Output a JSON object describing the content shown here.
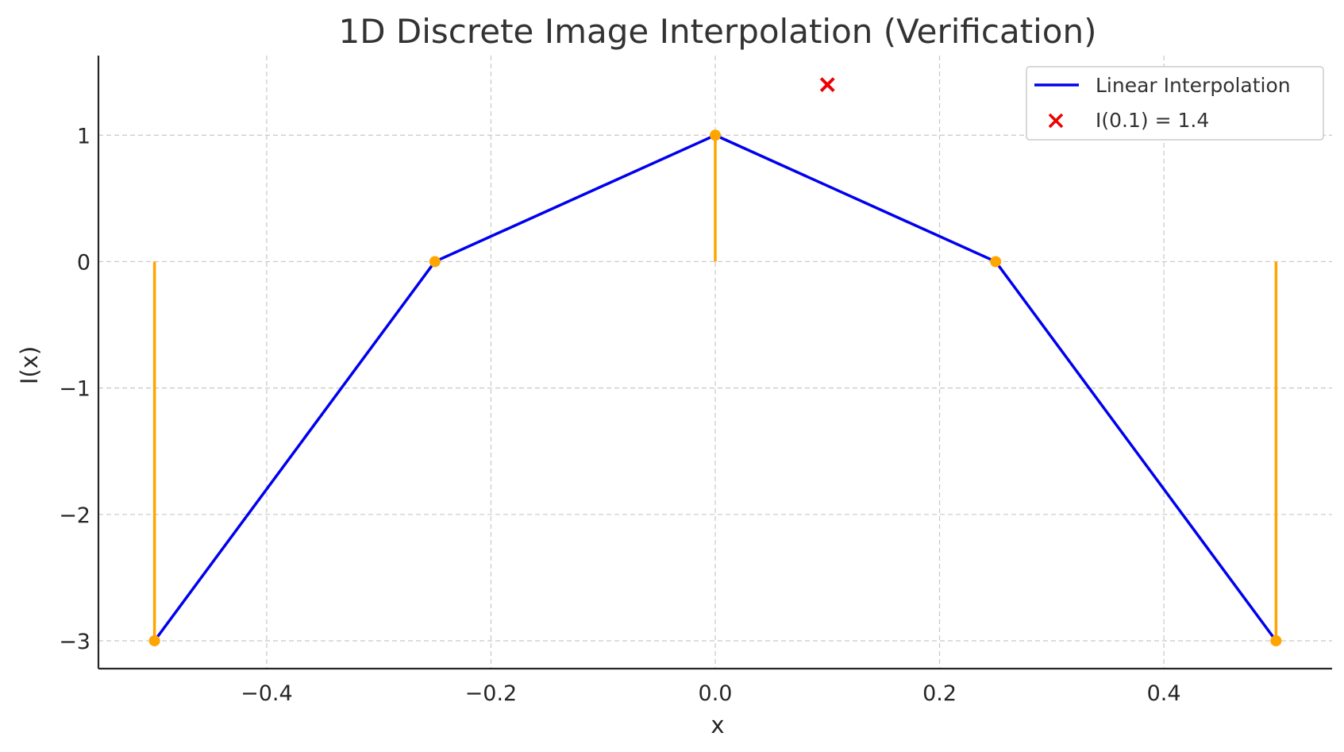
{
  "chart_data": {
    "type": "line",
    "title": "1D Discrete Image Interpolation (Verification)",
    "xlabel": "x",
    "ylabel": "I(x)",
    "xlim": [
      -0.55,
      0.55
    ],
    "ylim": [
      -3.22,
      1.63
    ],
    "xticks": [
      -0.4,
      -0.2,
      0.0,
      0.2,
      0.4
    ],
    "xtick_labels": [
      "−0.4",
      "−0.2",
      "0.0",
      "0.2",
      "0.4"
    ],
    "yticks": [
      1,
      0,
      -1,
      -2,
      -3
    ],
    "ytick_labels": [
      "1",
      "0",
      "−1",
      "−2",
      "−3"
    ],
    "grid": true,
    "legend_position": "top-right",
    "stems": {
      "color": "#ffa500",
      "x": [
        -0.5,
        -0.25,
        0.0,
        0.25,
        0.5
      ],
      "y": [
        -3,
        0,
        1,
        0,
        -3
      ]
    },
    "series": [
      {
        "name": "Linear Interpolation",
        "type": "line",
        "color": "#0000ee",
        "x": [
          -0.5,
          -0.25,
          0.0,
          0.25,
          0.5
        ],
        "y": [
          -3,
          0,
          1,
          0,
          -3
        ]
      },
      {
        "name": "I(0.1) = 1.4",
        "type": "scatter",
        "marker": "x",
        "color": "#ee0000",
        "x": [
          0.1
        ],
        "y": [
          1.4
        ]
      }
    ]
  }
}
